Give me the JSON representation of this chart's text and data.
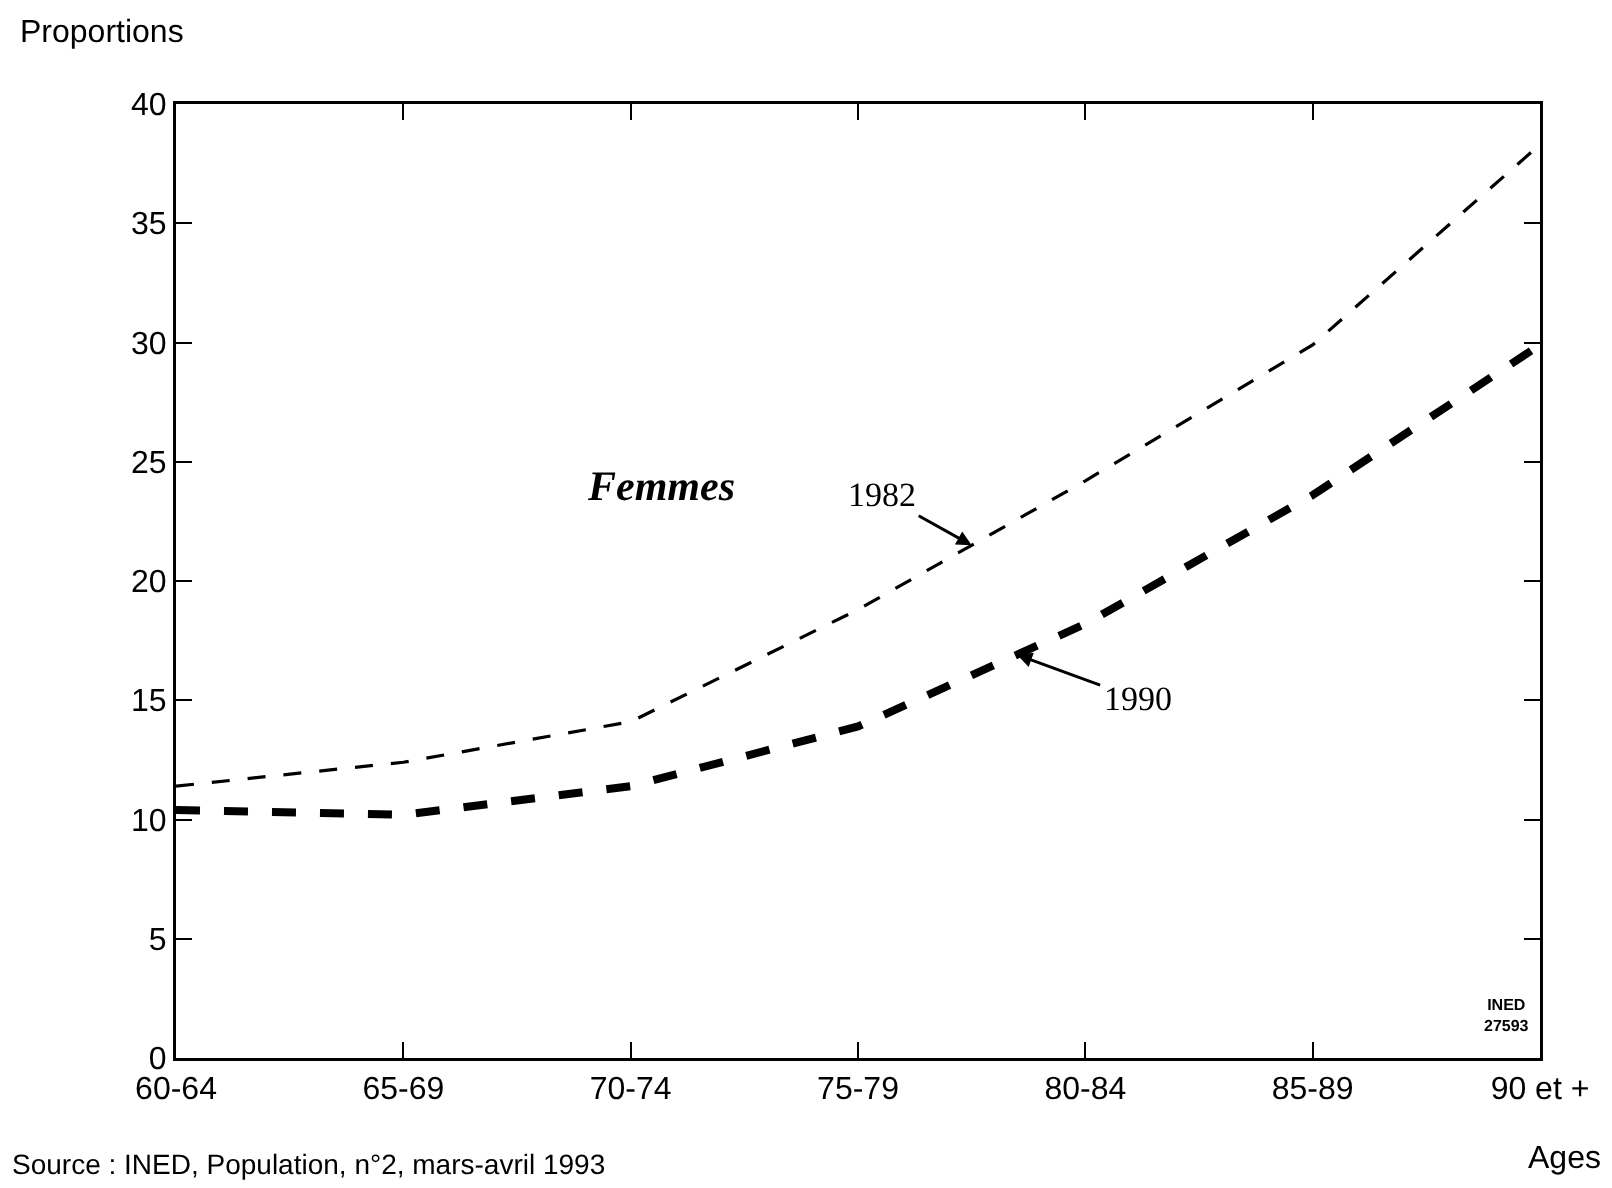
{
  "chart_data": {
    "type": "line",
    "ylabel": "Proportions",
    "xlabel": "Ages",
    "categories": [
      "60-64",
      "65-69",
      "70-74",
      "75-79",
      "80-84",
      "85-89",
      "90 et +"
    ],
    "series": [
      {
        "name": "1982",
        "color": "#000000",
        "line_style": "dashed",
        "values": [
          11.4,
          12.4,
          14.1,
          18.8,
          24.2,
          29.9,
          38.3
        ]
      },
      {
        "name": "1990",
        "color": "#000000",
        "line_style": "dashed",
        "values": [
          10.4,
          10.2,
          11.4,
          13.9,
          18.2,
          23.6,
          29.9
        ]
      }
    ],
    "ylim": [
      0,
      40
    ],
    "yticks": [
      0,
      5,
      10,
      15,
      20,
      25,
      30,
      35,
      40
    ],
    "grid": false,
    "annotations": [
      "Femmes",
      "INED\n27593",
      "Source : INED, Population, n°2, mars-avril 1993"
    ]
  }
}
